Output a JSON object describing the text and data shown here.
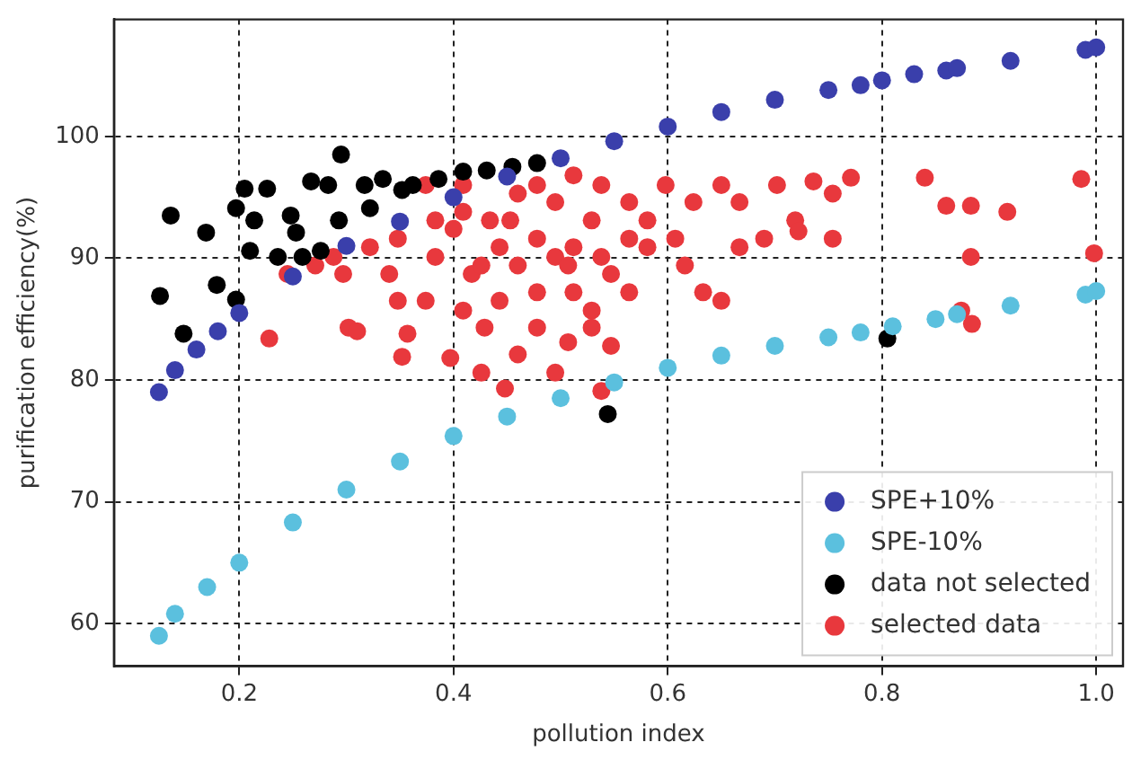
{
  "chart_data": {
    "type": "scatter",
    "xlabel": "pollution index",
    "ylabel": "purification efficiency(%)",
    "xlim": [
      0.083,
      1.025
    ],
    "ylim": [
      56.5,
      109.6
    ],
    "xticks": [
      0.2,
      0.4,
      0.6,
      0.8,
      {
        "value": 1,
        "label": "1.0"
      }
    ],
    "yticks": [
      60,
      70,
      80,
      90,
      100
    ],
    "grid": true,
    "legend": "bottom right",
    "marker": "circle",
    "series": [
      {
        "name": "SPE+10%",
        "color": "#3a3fab",
        "x": [
          0.125,
          0.14,
          0.16,
          0.18,
          0.2,
          0.25,
          0.3,
          0.35,
          0.4,
          0.45,
          0.5,
          0.55,
          0.6,
          0.65,
          0.7,
          0.75,
          0.78,
          0.8,
          0.83,
          0.86,
          0.87,
          0.92,
          0.99,
          1.0
        ],
        "values": [
          79,
          80.8,
          82.5,
          84,
          85.5,
          88.5,
          91,
          93,
          95,
          96.7,
          98.2,
          99.6,
          100.8,
          102,
          103,
          103.8,
          104.2,
          104.6,
          105.1,
          105.4,
          105.6,
          106.2,
          107.1,
          107.3
        ]
      },
      {
        "name": "SPE-10%",
        "color": "#5bc0de",
        "x": [
          0.125,
          0.14,
          0.17,
          0.2,
          0.25,
          0.3,
          0.35,
          0.4,
          0.45,
          0.5,
          0.55,
          0.6,
          0.65,
          0.7,
          0.75,
          0.78,
          0.81,
          0.85,
          0.87,
          0.92,
          0.99,
          1.0
        ],
        "values": [
          59,
          60.8,
          63,
          65,
          68.3,
          71,
          73.3,
          75.4,
          77,
          78.5,
          79.8,
          81,
          82,
          82.8,
          83.5,
          83.9,
          84.4,
          85,
          85.4,
          86.1,
          87,
          87.3
        ]
      },
      {
        "name": "data not selected",
        "color": "#000000",
        "x": [
          0.136,
          0.169,
          0.126,
          0.179,
          0.148,
          0.197,
          0.295,
          0.205,
          0.226,
          0.197,
          0.214,
          0.21,
          0.248,
          0.267,
          0.253,
          0.283,
          0.293,
          0.259,
          0.317,
          0.334,
          0.352,
          0.362,
          0.386,
          0.409,
          0.431,
          0.455,
          0.478,
          0.322,
          0.305,
          0.276,
          0.236,
          0.544,
          0.805
        ],
        "values": [
          93.5,
          92.1,
          86.9,
          87.8,
          83.8,
          86.6,
          98.5,
          95.7,
          95.7,
          94.1,
          93.1,
          90.6,
          93.5,
          96.3,
          92.1,
          96,
          93.1,
          90.1,
          96,
          96.5,
          95.6,
          96,
          96.5,
          97.1,
          97.2,
          97.5,
          97.8,
          94.1,
          null,
          90.6,
          90.1,
          77.2,
          83.4
        ]
      },
      {
        "name": "selected data",
        "color": "#e8383d",
        "x": [
          0.228,
          0.302,
          0.31,
          0.352,
          0.357,
          0.397,
          0.448,
          0.426,
          0.46,
          0.495,
          0.507,
          0.547,
          0.529,
          0.538,
          0.564,
          0.616,
          0.633,
          0.65,
          0.667,
          0.69,
          0.667,
          0.702,
          0.736,
          0.754,
          0.771,
          0.719,
          0.722,
          0.754,
          0.84,
          0.86,
          0.883,
          0.917,
          0.883,
          0.874,
          0.884,
          0.986,
          0.998,
          0.297,
          0.288,
          0.34,
          0.383,
          0.417,
          0.46,
          0.495,
          0.529,
          0.564,
          0.598,
          0.624,
          0.65,
          0.607,
          0.581,
          0.547,
          0.512,
          0.478,
          0.443,
          0.409,
          0.374,
          0.348,
          0.383,
          0.409,
          0.434,
          0.46,
          0.478,
          0.495,
          0.512,
          0.538,
          0.443,
          0.478,
          0.512,
          0.538,
          0.564,
          0.581,
          0.348,
          0.322,
          0.271,
          0.245,
          0.374,
          0.409,
          0.426,
          0.4,
          0.529,
          0.478,
          0.429,
          0.507,
          0.453
        ],
        "values": [
          83.4,
          84.3,
          84,
          81.9,
          83.8,
          81.8,
          79.3,
          80.6,
          82.1,
          80.6,
          83.1,
          82.8,
          85.7,
          79.1,
          87.2,
          89.4,
          87.2,
          86.5,
          90.9,
          91.6,
          94.6,
          96,
          96.3,
          95.3,
          96.6,
          93.1,
          92.2,
          91.6,
          96.6,
          94.3,
          94.3,
          93.8,
          90.1,
          85.7,
          84.6,
          96.5,
          90.4,
          88.7,
          90.1,
          88.7,
          90.1,
          88.7,
          89.4,
          90.1,
          93.1,
          94.6,
          96,
          94.6,
          96,
          91.6,
          90.9,
          88.7,
          87.2,
          87.2,
          86.5,
          85.7,
          86.5,
          86.5,
          93.1,
          93.8,
          93.1,
          95.3,
          96,
          94.6,
          96.8,
          96,
          90.9,
          91.6,
          90.9,
          90.1,
          91.6,
          93.1,
          91.6,
          90.9,
          89.4,
          88.7,
          96,
          96,
          89.4,
          92.4,
          84.3,
          84.3,
          84.3,
          89.4,
          93.1
        ]
      }
    ]
  }
}
